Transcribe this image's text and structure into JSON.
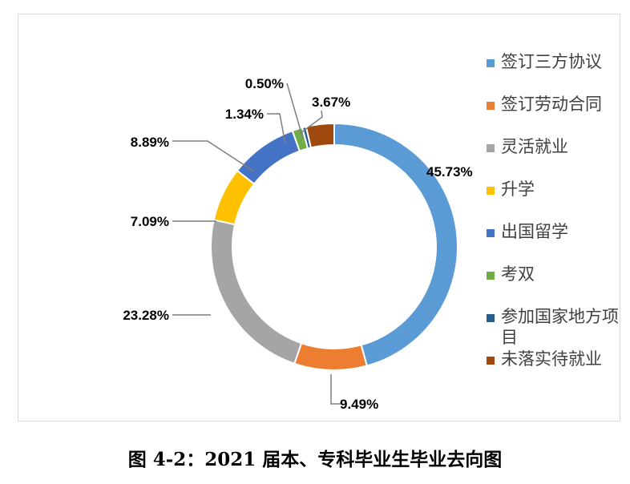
{
  "chart_data": {
    "type": "pie",
    "variant": "donut",
    "categories": [
      "签订三方协议",
      "签订劳动合同",
      "灵活就业",
      "升学",
      "出国留学",
      "考双",
      "参加国家地方项目",
      "未落实待就业"
    ],
    "values": [
      45.73,
      9.49,
      23.28,
      7.09,
      8.89,
      1.34,
      0.5,
      3.67
    ],
    "data_labels": [
      "45.73%",
      "9.49%",
      "23.28%",
      "7.09%",
      "8.89%",
      "1.34%",
      "0.50%",
      "3.67%"
    ],
    "colors": [
      "#5b9bd5",
      "#ed7d31",
      "#a5a5a5",
      "#ffc000",
      "#4472c4",
      "#70ad47",
      "#255e91",
      "#9e480e"
    ],
    "legend_position": "right",
    "title": ""
  },
  "caption": "图 4-2：2021 届本、专科毕业生毕业去向图"
}
